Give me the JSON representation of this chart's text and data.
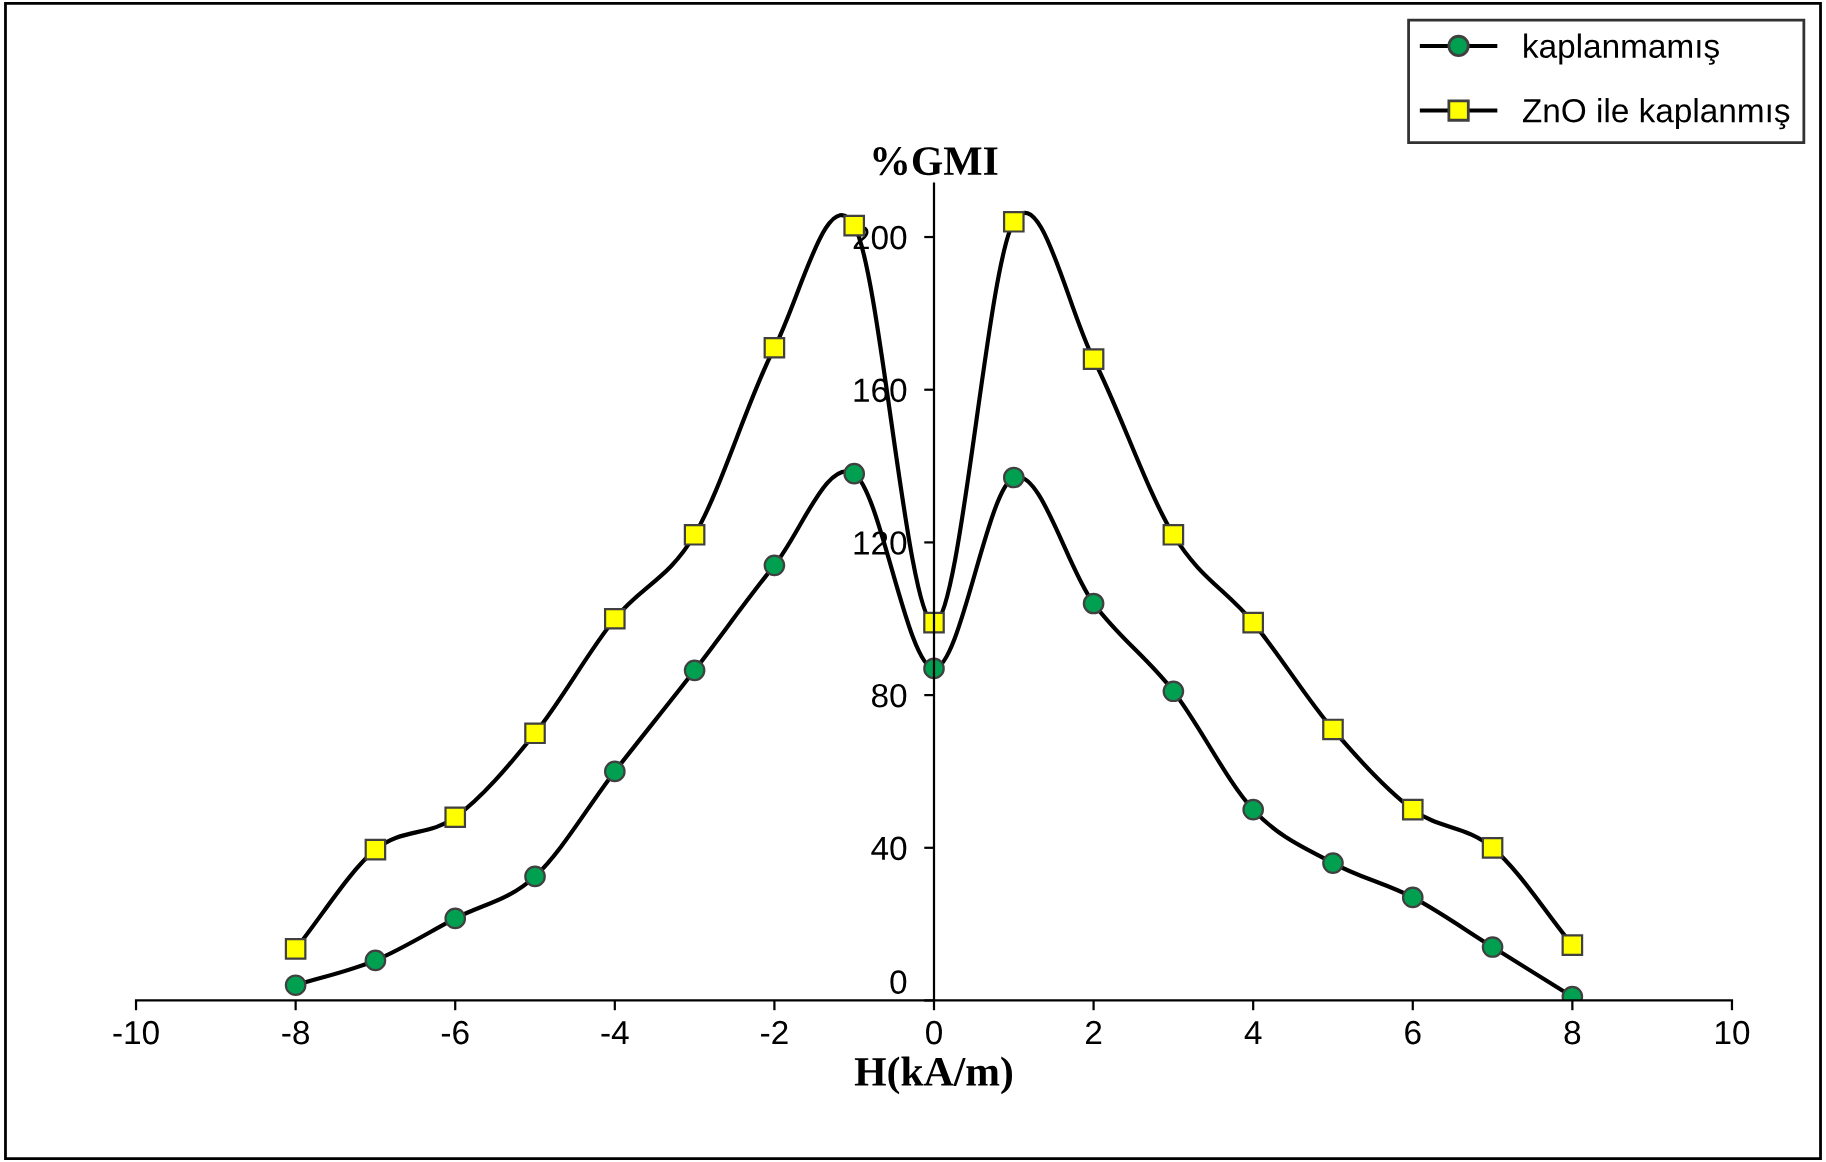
{
  "chart_data": {
    "type": "line",
    "ylabel": "%GMI",
    "xlabel": "H(kA/m)",
    "x": [
      -8,
      -7,
      -6,
      -5,
      -4,
      -3,
      -2,
      -1,
      0,
      1,
      2,
      3,
      4,
      5,
      6,
      7,
      8
    ],
    "xlim": [
      -10,
      10
    ],
    "xticks": [
      -10,
      -8,
      -6,
      -4,
      -2,
      0,
      2,
      4,
      6,
      8,
      10
    ],
    "ylim": [
      0,
      214
    ],
    "yticks": [
      0,
      40,
      80,
      120,
      160,
      200
    ],
    "grid": false,
    "legend": "top right",
    "line_style": "solid",
    "series": [
      {
        "name": "kaplanmamış",
        "color": "#00a050",
        "marker": "circle",
        "values": [
          4,
          10.5,
          21.5,
          32.5,
          60,
          86.5,
          114,
          138,
          87,
          137,
          104,
          81,
          50,
          36,
          27,
          14,
          1
        ]
      },
      {
        "name": "ZnO ile kaplanmış",
        "color": "#ffff00",
        "marker": "square",
        "values": [
          13.5,
          39.5,
          48,
          70,
          100,
          122,
          171,
          203,
          99,
          204,
          168,
          122,
          99,
          71,
          50,
          40,
          14.5
        ]
      }
    ]
  }
}
